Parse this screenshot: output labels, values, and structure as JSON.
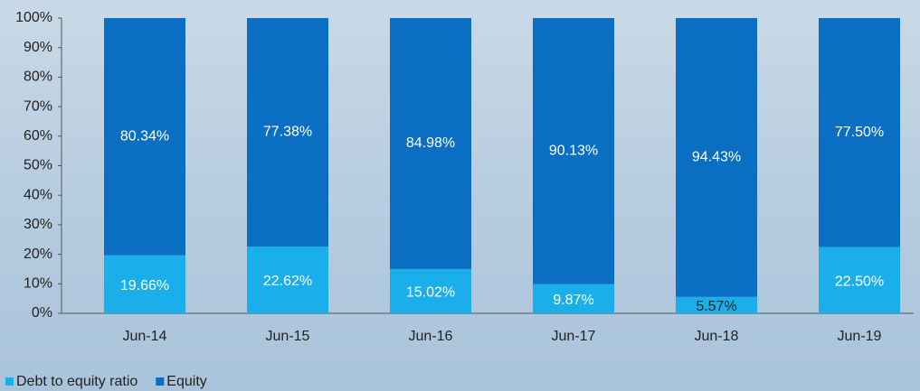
{
  "chart_data": {
    "type": "stacked_bar",
    "categories": [
      "Jun-14",
      "Jun-15",
      "Jun-16",
      "Jun-17",
      "Jun-18",
      "Jun-19"
    ],
    "series": [
      {
        "name": "Debt to equity ratio",
        "color": "#1aafeb",
        "values": [
          19.66,
          22.62,
          15.02,
          9.87,
          5.57,
          22.5
        ],
        "value_labels": [
          "19.66%",
          "22.62%",
          "15.02%",
          "9.87%",
          "5.57%",
          "22.50%"
        ]
      },
      {
        "name": "Equity",
        "color": "#0a6fc2",
        "values": [
          80.34,
          77.38,
          84.98,
          90.13,
          94.43,
          77.5
        ],
        "value_labels": [
          "80.34%",
          "77.38%",
          "84.98%",
          "90.13%",
          "94.43%",
          "77.50%"
        ]
      }
    ],
    "ylim": [
      0,
      100
    ],
    "yticks": [
      {
        "value": 0,
        "label": "0%"
      },
      {
        "value": 10,
        "label": "10%"
      },
      {
        "value": 20,
        "label": "20%"
      },
      {
        "value": 30,
        "label": "30%"
      },
      {
        "value": 40,
        "label": "40%"
      },
      {
        "value": 50,
        "label": "50%"
      },
      {
        "value": 60,
        "label": "60%"
      },
      {
        "value": 70,
        "label": "70%"
      },
      {
        "value": 80,
        "label": "80%"
      },
      {
        "value": 90,
        "label": "90%"
      },
      {
        "value": 100,
        "label": "100%"
      }
    ],
    "legend": "bottom-left"
  }
}
